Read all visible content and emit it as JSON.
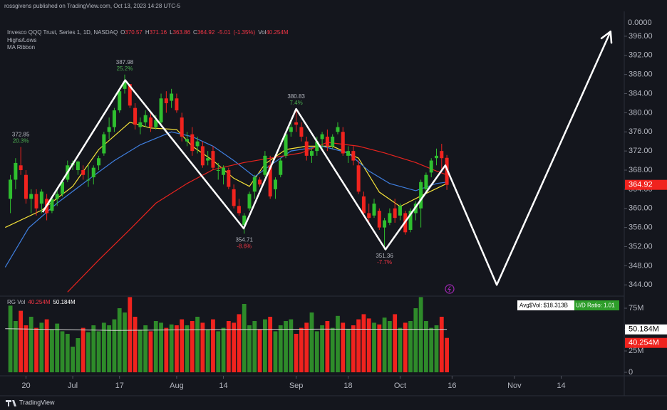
{
  "published_by": "rossgivens published on TradingView.com, Oct 13, 2023 14:28 UTC-5",
  "brand": "TradingView",
  "header": {
    "symbol": "Invesco QQQ Trust, Series 1, 1D, NASDAQ",
    "field_labels": [
      "O",
      "H",
      "L",
      "C",
      "Vol"
    ],
    "change": "-5.01",
    "change_pct": "(-1.35%)",
    "indicators": [
      "Highs/Lows",
      "MA Ribbon"
    ]
  },
  "stats": [
    "Avg$Vol: $18.313B",
    "U/D Ratio: 1.01"
  ],
  "chart_data": {
    "type": "candlestick",
    "up_color": "#2fbf2f",
    "down_color": "#f0231e",
    "xlim": [
      -2,
      118
    ],
    "ylim": [
      341.8,
      400.9
    ],
    "axis_top_label": "0.0000",
    "xticks": [
      {
        "value": 3,
        "label": "20"
      },
      {
        "value": 12,
        "label": "Jul"
      },
      {
        "value": 21,
        "label": "17"
      },
      {
        "value": 32,
        "label": "Aug"
      },
      {
        "value": 41,
        "label": "14"
      },
      {
        "value": 55,
        "label": "Sep"
      },
      {
        "value": 65,
        "label": "18"
      },
      {
        "value": 75,
        "label": "Oct"
      },
      {
        "value": 85,
        "label": "16"
      },
      {
        "value": 97,
        "label": "Nov"
      },
      {
        "value": 106,
        "label": "14"
      }
    ],
    "yticks": [
      {
        "value": 344,
        "label": "344.00"
      },
      {
        "value": 348,
        "label": "348.00"
      },
      {
        "value": 352,
        "label": "352.00"
      },
      {
        "value": 356,
        "label": "356.00"
      },
      {
        "value": 360,
        "label": "360.00"
      },
      {
        "value": 364,
        "label": "364.00"
      },
      {
        "value": 368,
        "label": "368.00"
      },
      {
        "value": 372,
        "label": "372.00"
      },
      {
        "value": 376,
        "label": "376.00"
      },
      {
        "value": 380,
        "label": "380.00"
      },
      {
        "value": 384,
        "label": "384.00"
      },
      {
        "value": 388,
        "label": "388.00"
      },
      {
        "value": 392,
        "label": "392.00"
      },
      {
        "value": 396,
        "label": "396.00"
      }
    ],
    "open": [
      362,
      366,
      369,
      367,
      362,
      363,
      361,
      362,
      359.5,
      362,
      363,
      366,
      369,
      368,
      368,
      366,
      366.5,
      369,
      371.5,
      376,
      377,
      380.5,
      385,
      386,
      381,
      377,
      378,
      379,
      377,
      378,
      383,
      382.5,
      383,
      379,
      374,
      375.5,
      373,
      373,
      370,
      372,
      368,
      367,
      368,
      364,
      360.5,
      356.5,
      360,
      363.5,
      366,
      367,
      369,
      364,
      367,
      371,
      376,
      378,
      377,
      374,
      371,
      372,
      374.5,
      375,
      373,
      376,
      376,
      371,
      372,
      369,
      362.5,
      359,
      358.5,
      359.5,
      356,
      357,
      360,
      358.5,
      359,
      355.5,
      359,
      360,
      364,
      367.5,
      370.5,
      372,
      370.57
    ],
    "high": [
      367,
      370.5,
      372.85,
      368,
      364,
      364,
      364,
      363,
      362.5,
      364,
      366,
      370,
      370,
      370,
      369,
      369,
      369,
      371,
      376,
      379,
      381,
      385,
      387.98,
      386,
      382,
      379,
      380.5,
      380,
      379.5,
      384,
      384.5,
      385,
      384,
      380,
      376,
      377,
      375,
      374,
      372,
      373,
      369.5,
      369,
      368.5,
      365,
      362,
      359,
      363.5,
      367,
      366.5,
      372,
      371,
      366.5,
      370.5,
      376,
      378,
      380.83,
      378,
      375,
      372.5,
      375,
      376,
      376.5,
      375.5,
      378,
      377,
      373,
      373,
      370,
      363.5,
      361,
      362,
      360,
      358,
      360,
      362,
      361,
      359.5,
      360,
      361.5,
      366,
      367.5,
      370.5,
      372.5,
      373.5,
      371.16
    ],
    "low": [
      359,
      364,
      367,
      361,
      359,
      358.5,
      359,
      357.5,
      359,
      360.5,
      362.5,
      365.5,
      368,
      367,
      366,
      364.5,
      365,
      368,
      371,
      374.5,
      376,
      380,
      384,
      381,
      376.5,
      375.5,
      377,
      376,
      376.5,
      377.5,
      380,
      381,
      380,
      374,
      373,
      371,
      371.5,
      368.5,
      369,
      368,
      366,
      365,
      364,
      360,
      358.5,
      354.71,
      359.5,
      362,
      364.5,
      366.5,
      362,
      362,
      366.5,
      370.5,
      375,
      376,
      374,
      370,
      369.5,
      371,
      372,
      372,
      372.5,
      375.5,
      371,
      369.5,
      369,
      363,
      358.5,
      357,
      358,
      355.5,
      351.36,
      356.5,
      357,
      357.5,
      354.5,
      355,
      357.5,
      356,
      363,
      366.5,
      369,
      368,
      363.86
    ],
    "close": [
      366,
      369.5,
      368,
      362,
      363,
      360,
      363.5,
      359,
      362,
      363,
      365.5,
      369,
      369.5,
      369.8,
      367,
      366,
      368.5,
      370.5,
      375.5,
      377,
      380.5,
      384.5,
      386.5,
      381.5,
      377.5,
      378,
      379.5,
      377,
      378.5,
      383,
      382,
      384,
      380.5,
      375,
      374.5,
      372,
      374,
      369,
      370.5,
      368.5,
      368,
      368.5,
      364.5,
      360.5,
      359,
      358.5,
      363,
      366.5,
      365,
      371,
      362.5,
      366,
      370,
      375.5,
      377,
      377.5,
      375,
      371,
      372,
      374,
      375.5,
      373,
      375,
      377,
      371.5,
      372,
      370,
      363.5,
      359,
      358,
      361,
      356,
      357.5,
      359,
      358,
      360.5,
      355,
      359.5,
      361,
      365.5,
      367,
      370,
      371,
      370.5,
      364.92
    ],
    "pivots": [
      {
        "x": 2,
        "at": "high",
        "change": "20.3%",
        "color": "#4caf50"
      },
      {
        "x": 22,
        "at": "high",
        "change": "25.2%",
        "color": "#4caf50"
      },
      {
        "x": 45,
        "at": "low",
        "change": "-8.6%",
        "color": "#f23645"
      },
      {
        "x": 55,
        "at": "high",
        "change": "7.4%",
        "color": "#4caf50"
      },
      {
        "x": 72,
        "at": "low",
        "change": "-7.7%",
        "color": "#f23645"
      }
    ],
    "ma_ribbon": [
      {
        "color": "#f5e23a",
        "x": [
          -1,
          6,
          12,
          17,
          23,
          27,
          32,
          35,
          39,
          43,
          46,
          49,
          53,
          57,
          62,
          67,
          71,
          75,
          79,
          84
        ],
        "values": [
          356,
          359.6,
          364.6,
          372.3,
          378,
          376.8,
          376.5,
          373,
          370,
          366.3,
          364.6,
          369.3,
          372.3,
          373,
          373,
          370.5,
          363.4,
          360.4,
          362.6,
          365.2
        ]
      },
      {
        "color": "#3f7fe0",
        "x": [
          -1,
          3.5,
          9,
          14.5,
          20,
          25,
          31,
          35,
          39,
          43,
          47,
          50,
          54,
          60,
          65,
          69,
          73,
          78,
          82,
          84
        ],
        "values": [
          347.7,
          355.9,
          361.1,
          365.6,
          370,
          373.3,
          376,
          375,
          373,
          370,
          366.6,
          369,
          372,
          373,
          371.6,
          367.8,
          365.2,
          363.7,
          365.2,
          365.5
        ]
      },
      {
        "color": "#e8231e",
        "x": [
          11,
          17,
          23,
          28,
          34,
          39,
          45,
          50,
          56,
          61,
          67,
          72,
          78,
          82,
          84
        ],
        "values": [
          342.5,
          349.2,
          355.6,
          361.1,
          365.2,
          368.1,
          369.6,
          370.5,
          371.6,
          373.8,
          373,
          371.6,
          369.6,
          367.8,
          367
        ]
      }
    ],
    "drawing": {
      "color": "#ffffff",
      "x": [
        6.2,
        22.1,
        44.9,
        55,
        72.2,
        83.7,
        93.6,
        115.5
      ],
      "y": [
        359.2,
        386.8,
        355.8,
        380.8,
        351.4,
        369.0,
        344,
        397
      ]
    },
    "volume": {
      "name": "RG Vol",
      "ylim": [
        -3.3,
        87.5
      ],
      "yticks": [
        0,
        {
          "value": 25,
          "label": "25M"
        },
        {
          "value": 50,
          "label": "50M"
        },
        {
          "value": 75,
          "label": "75M"
        }
      ],
      "values": [
        78,
        60,
        72,
        55,
        65,
        52,
        58,
        62,
        50,
        57,
        48,
        45,
        30,
        40,
        52,
        47,
        55,
        48,
        58,
        55,
        62,
        75,
        70,
        88,
        65,
        50,
        55,
        48,
        60,
        58,
        52,
        56,
        55,
        62,
        55,
        60,
        65,
        58,
        50,
        62,
        48,
        52,
        60,
        58,
        68,
        80,
        55,
        60,
        50,
        62,
        65,
        48,
        55,
        60,
        62,
        45,
        52,
        58,
        70,
        48,
        55,
        60,
        52,
        66,
        58,
        50,
        55,
        62,
        68,
        63,
        58,
        56,
        64,
        60,
        68,
        52,
        58,
        60,
        75,
        88,
        60,
        52,
        55,
        65,
        40.254
      ],
      "last_label": "40.254M",
      "up_color": "#2e8b2a",
      "down_color": "#f0231e",
      "average": {
        "color": "#d8d8d8",
        "x": [
          -1,
          20,
          40,
          60,
          84
        ],
        "values": [
          51,
          49,
          50,
          50.5,
          50.184
        ],
        "label": "50.184M"
      }
    }
  }
}
